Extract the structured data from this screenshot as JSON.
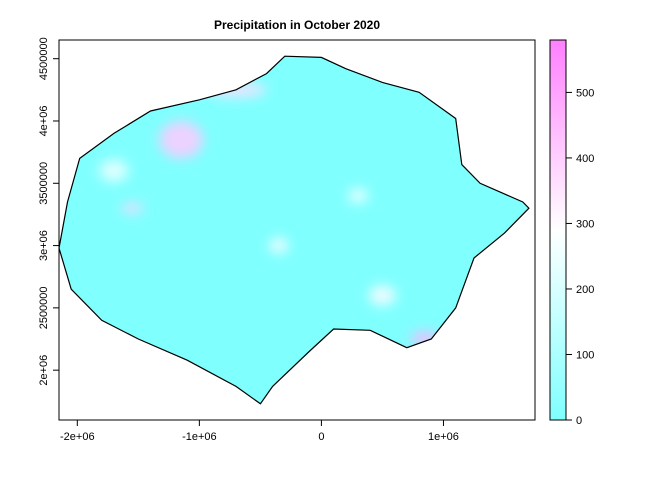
{
  "chart_data": {
    "type": "heatmap",
    "title": "Precipitation in October 2020",
    "xlabel": "",
    "ylabel": "",
    "x_ticks": [
      {
        "value": -2000000,
        "label": "-2e+06"
      },
      {
        "value": -1000000,
        "label": "-1e+06"
      },
      {
        "value": 0,
        "label": "0"
      },
      {
        "value": 1000000,
        "label": "1e+06"
      }
    ],
    "y_ticks": [
      {
        "value": 2000000,
        "label": "2e+06"
      },
      {
        "value": 2500000,
        "label": "2500000"
      },
      {
        "value": 3000000,
        "label": "3e+06"
      },
      {
        "value": 3500000,
        "label": "3500000"
      },
      {
        "value": 4000000,
        "label": "4e+06"
      },
      {
        "value": 4500000,
        "label": "4500000"
      }
    ],
    "xlim": [
      -2150000,
      1750000
    ],
    "ylim": [
      1600000,
      4650000
    ],
    "colorbar": {
      "range": [
        0,
        580
      ],
      "ticks": [
        {
          "value": 0,
          "label": "0"
        },
        {
          "value": 100,
          "label": "100"
        },
        {
          "value": 200,
          "label": "200"
        },
        {
          "value": 300,
          "label": "300"
        },
        {
          "value": 400,
          "label": "400"
        },
        {
          "value": 500,
          "label": "500"
        }
      ],
      "colors": [
        "#80FFFF",
        "#FFFFFF",
        "#FF80FF"
      ]
    },
    "region_outline": [
      [
        -2150000,
        2980000
      ],
      [
        -2080000,
        3350000
      ],
      [
        -1980000,
        3700000
      ],
      [
        -1700000,
        3900000
      ],
      [
        -1400000,
        4080000
      ],
      [
        -1000000,
        4170000
      ],
      [
        -700000,
        4250000
      ],
      [
        -450000,
        4380000
      ],
      [
        -300000,
        4520000
      ],
      [
        0,
        4510000
      ],
      [
        200000,
        4420000
      ],
      [
        500000,
        4310000
      ],
      [
        800000,
        4230000
      ],
      [
        1100000,
        4020000
      ],
      [
        1150000,
        3650000
      ],
      [
        1300000,
        3500000
      ],
      [
        1650000,
        3350000
      ],
      [
        1700000,
        3300000
      ],
      [
        1500000,
        3100000
      ],
      [
        1250000,
        2900000
      ],
      [
        1100000,
        2500000
      ],
      [
        900000,
        2250000
      ],
      [
        700000,
        2180000
      ],
      [
        400000,
        2320000
      ],
      [
        100000,
        2330000
      ],
      [
        -100000,
        2150000
      ],
      [
        -400000,
        1870000
      ],
      [
        -500000,
        1730000
      ],
      [
        -700000,
        1870000
      ],
      [
        -1100000,
        2080000
      ],
      [
        -1500000,
        2250000
      ],
      [
        -1800000,
        2400000
      ],
      [
        -2050000,
        2650000
      ],
      [
        -2150000,
        2980000
      ]
    ],
    "hotspots": [
      {
        "x": -1150000,
        "y": 3850000,
        "rx": 180000,
        "ry": 150000,
        "value": 410
      },
      {
        "x": -700000,
        "y": 4250000,
        "rx": 250000,
        "ry": 60000,
        "value": 360
      },
      {
        "x": -1550000,
        "y": 3300000,
        "rx": 90000,
        "ry": 40000,
        "value": 380
      },
      {
        "x": 850000,
        "y": 2250000,
        "rx": 120000,
        "ry": 60000,
        "value": 460
      },
      {
        "x": 500000,
        "y": 2600000,
        "rx": 110000,
        "ry": 80000,
        "value": 300
      },
      {
        "x": -350000,
        "y": 3000000,
        "rx": 80000,
        "ry": 60000,
        "value": 300
      },
      {
        "x": -1700000,
        "y": 3600000,
        "rx": 120000,
        "ry": 90000,
        "value": 250
      },
      {
        "x": 300000,
        "y": 3400000,
        "rx": 80000,
        "ry": 60000,
        "value": 270
      }
    ]
  }
}
